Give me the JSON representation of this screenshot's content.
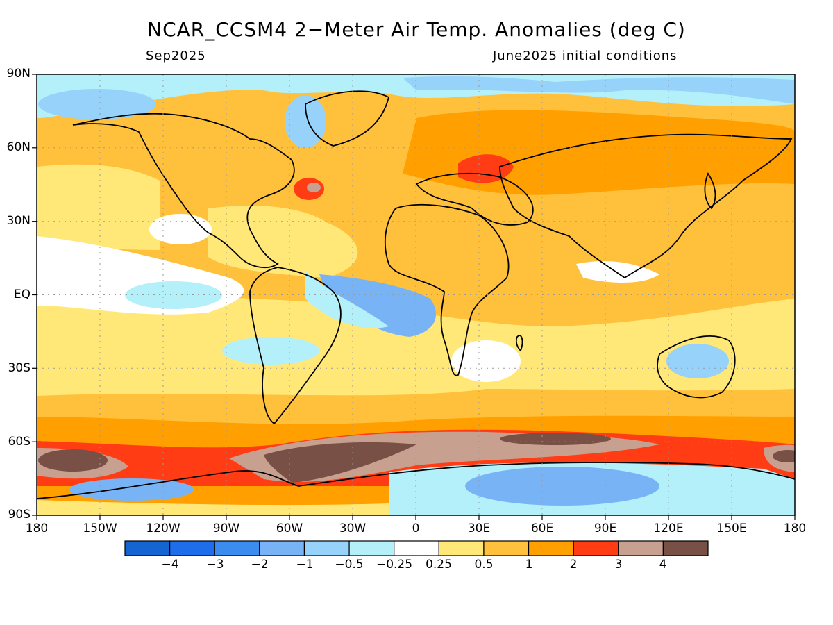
{
  "header": {
    "title": "NCAR_CCSM4 2−Meter Air Temp. Anomalies (deg C)",
    "month": "Sep2025",
    "initial_conditions": "June2025 initial conditions"
  },
  "axes": {
    "lat_labels": [
      "90N",
      "60N",
      "30N",
      "EQ",
      "30S",
      "60S",
      "90S"
    ],
    "lon_labels": [
      "180",
      "150W",
      "120W",
      "90W",
      "60W",
      "30W",
      "0",
      "30E",
      "60E",
      "90E",
      "120E",
      "150E",
      "180"
    ]
  },
  "colorbar": {
    "colors": [
      "#1464d2",
      "#1e6eeb",
      "#3c8cf0",
      "#78b4f5",
      "#96d2fa",
      "#b4f0fa",
      "#ffffff",
      "#ffe878",
      "#ffc03c",
      "#ffa000",
      "#ff3c14",
      "#c8a090",
      "#785046"
    ],
    "labels": [
      "−4",
      "−3",
      "−2",
      "−1",
      "−0.5",
      "−0.25",
      "0.25",
      "0.5",
      "1",
      "2",
      "3",
      "4"
    ]
  },
  "map_data": {
    "variable": "2-meter air temperature anomaly",
    "units": "deg C",
    "projection": "cylindrical equidistant",
    "lon_range": [
      -180,
      180
    ],
    "lat_range": [
      -90,
      90
    ],
    "grid": true
  }
}
